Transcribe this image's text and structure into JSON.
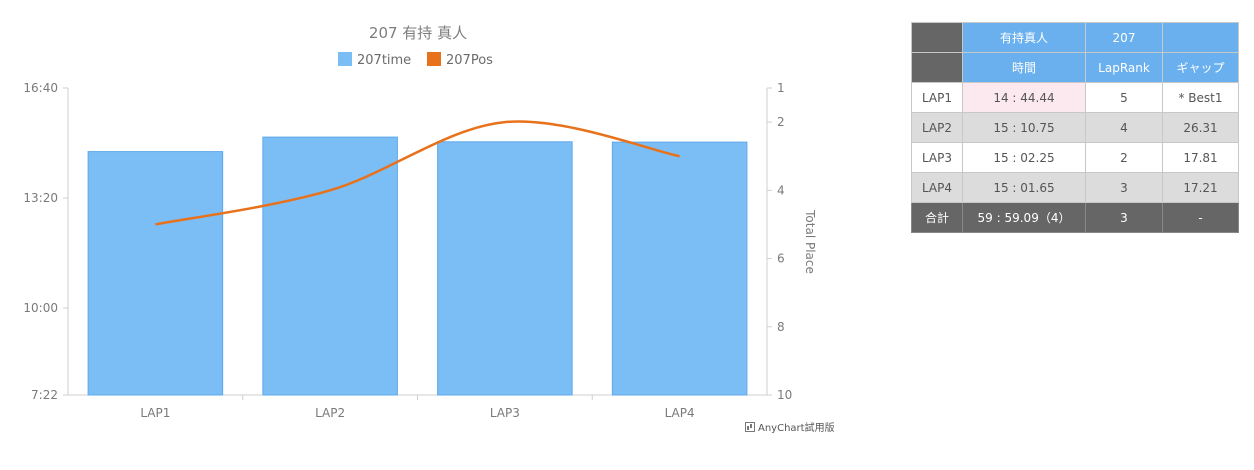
{
  "chart_data": {
    "type": "bar+line",
    "title": "207 有持 真人",
    "categories": [
      "LAP1",
      "LAP2",
      "LAP3",
      "LAP4"
    ],
    "series": [
      {
        "name": "207time",
        "type": "bar",
        "axis": "left",
        "values_seconds": [
          884.44,
          910.75,
          902.25,
          901.65
        ],
        "color": "#7bbdf5"
      },
      {
        "name": "207Pos",
        "type": "line",
        "axis": "right",
        "values": [
          5,
          4,
          2,
          3
        ],
        "color": "#e8721c"
      }
    ],
    "y_left": {
      "min_seconds": 442,
      "max_seconds": 1000,
      "ticks_seconds": [
        442,
        600,
        800,
        1000
      ],
      "tick_labels": [
        "7:22",
        "10:00",
        "13:20",
        "16:40"
      ]
    },
    "y_right": {
      "label": "Total Place",
      "inverted": true,
      "min": 1,
      "max": 10,
      "ticks": [
        1,
        2,
        4,
        6,
        8,
        10
      ]
    },
    "legend_placement": "top-center",
    "credit": "AnyChart試用版"
  },
  "table": {
    "header1": [
      "",
      "有持真人",
      "207",
      ""
    ],
    "header2": [
      "",
      "時間",
      "LapRank",
      "ギャップ"
    ],
    "rows": [
      {
        "lap": "LAP1",
        "time": "14 : 44.44",
        "rank": "5",
        "gap": "* Best1"
      },
      {
        "lap": "LAP2",
        "time": "15 : 10.75",
        "rank": "4",
        "gap": "26.31"
      },
      {
        "lap": "LAP3",
        "time": "15 : 02.25",
        "rank": "2",
        "gap": "17.81"
      },
      {
        "lap": "LAP4",
        "time": "15 : 01.65",
        "rank": "3",
        "gap": "17.21"
      }
    ],
    "total": {
      "label": "合計",
      "time": "59 : 59.09（4）",
      "rank": "3",
      "gap": "-"
    }
  }
}
